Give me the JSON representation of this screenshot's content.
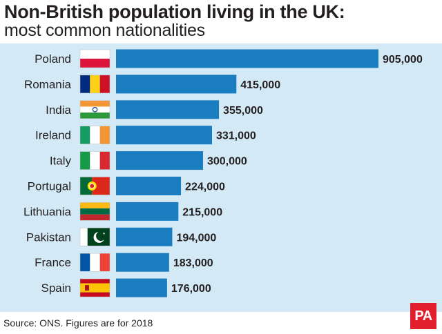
{
  "header": {
    "title": "Non-British population living in the UK:",
    "subtitle": "most common nationalities"
  },
  "footer": {
    "source": "Source: ONS. Figures are for 2018",
    "logo": "PA"
  },
  "colors": {
    "bar": "#1a7dc0",
    "panel": "#d4e9f6",
    "logo": "#e2202d"
  },
  "chart_data": {
    "type": "bar",
    "orientation": "horizontal",
    "categories": [
      "Poland",
      "Romania",
      "India",
      "Ireland",
      "Italy",
      "Portugal",
      "Lithuania",
      "Pakistan",
      "France",
      "Spain"
    ],
    "values": [
      905000,
      415000,
      355000,
      331000,
      300000,
      224000,
      215000,
      194000,
      183000,
      176000
    ],
    "value_labels": [
      "905,000",
      "415,000",
      "355,000",
      "331,000",
      "300,000",
      "224,000",
      "215,000",
      "194,000",
      "183,000",
      "176,000"
    ],
    "flags": [
      "poland-flag-icon",
      "romania-flag-icon",
      "india-flag-icon",
      "ireland-flag-icon",
      "italy-flag-icon",
      "portugal-flag-icon",
      "lithuania-flag-icon",
      "pakistan-flag-icon",
      "france-flag-icon",
      "spain-flag-icon"
    ],
    "title": "Non-British population living in the UK:",
    "subtitle": "most common nationalities",
    "xlim": [
      0,
      905000
    ],
    "grid": false
  }
}
